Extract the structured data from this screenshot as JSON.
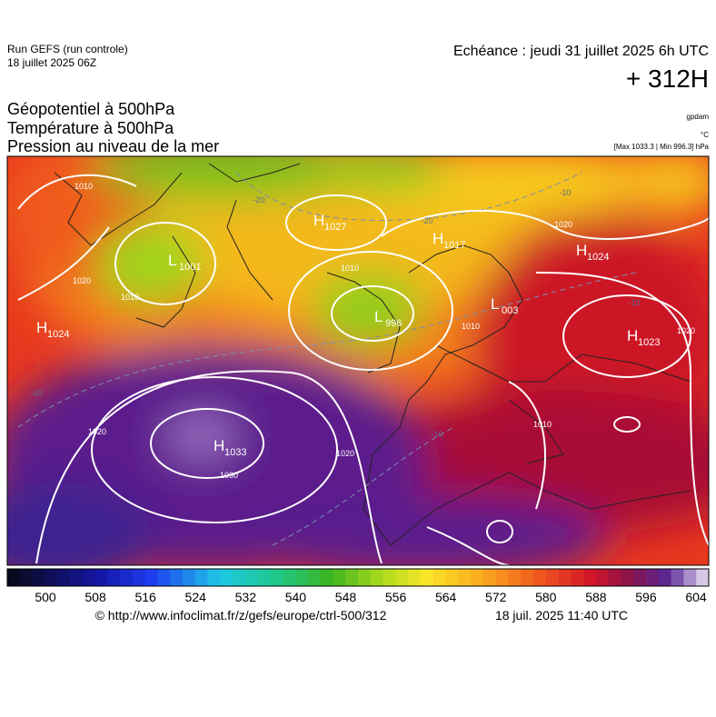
{
  "header": {
    "run": "Run GEFS (run controle)",
    "run_date": "18 juillet 2025 06Z",
    "forecast_time": "Echéance : jeudi 31 juillet 2025 6h UTC",
    "lead": "+ 312H"
  },
  "titles": [
    "Géopotentiel à 500hPa",
    "Température à 500hPa",
    "Pression au niveau de la mer"
  ],
  "units": {
    "geopotential": "gpdam",
    "temperature": "°C",
    "pressure": "[Max 1033.3 | Min 996.3] hPa"
  },
  "map": {
    "centers": [
      {
        "letter": "H",
        "value": "1024"
      },
      {
        "letter": "L",
        "value": "1001"
      },
      {
        "letter": "H",
        "value": "1027"
      },
      {
        "letter": "H",
        "value": "1017"
      },
      {
        "letter": "H",
        "value": "1024"
      },
      {
        "letter": "L",
        "value": "996"
      },
      {
        "letter": "L",
        "value": "003"
      },
      {
        "letter": "H",
        "value": "1023"
      },
      {
        "letter": "H",
        "value": "1033"
      }
    ],
    "isobar_labels": [
      "1010",
      "1020",
      "1010",
      "1010",
      "1020",
      "1020",
      "1010",
      "1020",
      "1030",
      "1020",
      "1010"
    ],
    "isotherm_labels": [
      "-20",
      "-20",
      "-10",
      "-10",
      "-10",
      "-10"
    ]
  },
  "colorbar": {
    "labels": [
      500,
      508,
      516,
      524,
      532,
      540,
      548,
      556,
      564,
      572,
      580,
      588,
      596,
      604
    ]
  },
  "footer": {
    "source": "© http://www.infoclimat.fr/z/gefs/europe/ctrl-500/312",
    "generated": "18 juil. 2025 11:40 UTC"
  }
}
